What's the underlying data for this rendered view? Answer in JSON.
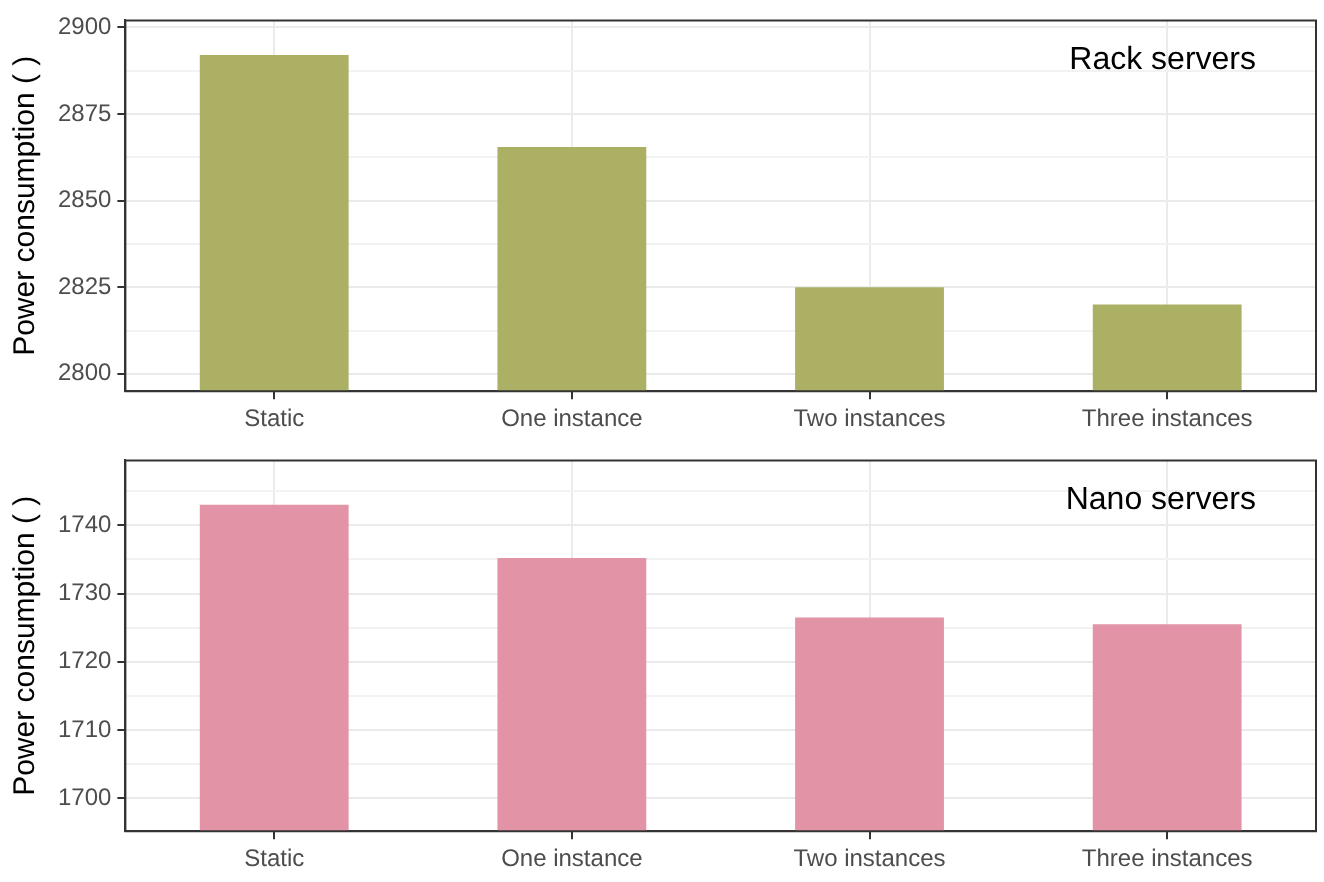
{
  "chart_data": [
    {
      "type": "bar",
      "title": "Rack servers",
      "ylabel": "Power consumption ( )",
      "categories": [
        "Static",
        "One instance",
        "Two instances",
        "Three instances"
      ],
      "values": [
        2892,
        2865.5,
        2825,
        2820
      ],
      "color": "#abb064",
      "ylim": [
        2795,
        2902
      ],
      "yticks": [
        2800,
        {
          "value": 2812.5,
          "label": null
        },
        2825,
        {
          "value": 2837.5,
          "label": null
        },
        2850,
        {
          "value": 2862.5,
          "label": null
        },
        2875,
        {
          "value": 2887.5,
          "label": null
        },
        2900
      ],
      "grid": true
    },
    {
      "type": "bar",
      "title": "Nano servers",
      "ylabel": "Power consumption ( )",
      "categories": [
        "Static",
        "One instance",
        "Two instances",
        "Three instances"
      ],
      "values": [
        1743,
        1735.2,
        1726.5,
        1725.5
      ],
      "color": "#e293a5",
      "ylim": [
        1695.2,
        1749.5
      ],
      "yticks": [
        1700,
        {
          "value": 1705,
          "label": null
        },
        1710,
        {
          "value": 1715,
          "label": null
        },
        1720,
        {
          "value": 1725,
          "label": null
        },
        1730,
        {
          "value": 1735,
          "label": null
        },
        1740,
        {
          "value": 1745,
          "label": null
        }
      ],
      "grid": true
    }
  ]
}
